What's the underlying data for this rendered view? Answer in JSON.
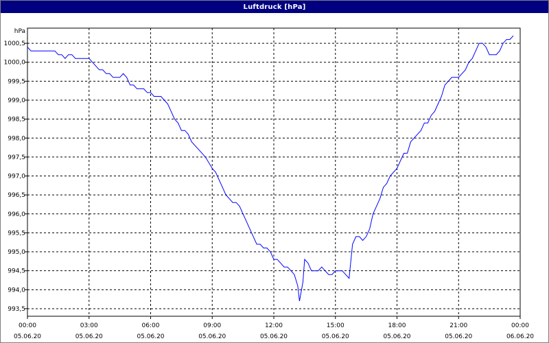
{
  "window": {
    "title": "Luftdruck [hPa]"
  },
  "colors": {
    "titlebar": "#000080",
    "line": "#0000ff",
    "grid": "#000000",
    "background": "#ffffff"
  },
  "chart_data": {
    "type": "line",
    "title": "Luftdruck [hPa]",
    "ylabel": "hPa",
    "xlabel": "",
    "x_ticks": [
      {
        "time": "00:00",
        "date": "05.06.20"
      },
      {
        "time": "03:00",
        "date": "05.06.20"
      },
      {
        "time": "06:00",
        "date": "05.06.20"
      },
      {
        "time": "09:00",
        "date": "05.06.20"
      },
      {
        "time": "12:00",
        "date": "05.06.20"
      },
      {
        "time": "15:00",
        "date": "05.06.20"
      },
      {
        "time": "18:00",
        "date": "05.06.20"
      },
      {
        "time": "21:00",
        "date": "05.06.20"
      },
      {
        "time": "00:00",
        "date": "06.06.20"
      }
    ],
    "y_ticks": [
      "993,5",
      "994,0",
      "994,5",
      "995,0",
      "995,5",
      "996,0",
      "996,5",
      "997,0",
      "997,5",
      "998,0",
      "998,5",
      "999,0",
      "999,5",
      "1000,0",
      "1000,5"
    ],
    "xlim": [
      "05.06.20 00:00",
      "06.06.20 00:00"
    ],
    "ylim": [
      993.3,
      1000.9
    ],
    "grid": true,
    "legend": false,
    "series": [
      {
        "points": [
          [
            "00:00",
            1000.4
          ],
          [
            "00:10",
            1000.3
          ],
          [
            "00:30",
            1000.3
          ],
          [
            "01:00",
            1000.3
          ],
          [
            "01:20",
            1000.3
          ],
          [
            "01:30",
            1000.2
          ],
          [
            "01:40",
            1000.2
          ],
          [
            "01:50",
            1000.1
          ],
          [
            "02:00",
            1000.2
          ],
          [
            "02:10",
            1000.2
          ],
          [
            "02:20",
            1000.1
          ],
          [
            "02:40",
            1000.1
          ],
          [
            "03:00",
            1000.1
          ],
          [
            "03:10",
            1000.0
          ],
          [
            "03:20",
            999.9
          ],
          [
            "03:30",
            999.8
          ],
          [
            "03:40",
            999.8
          ],
          [
            "03:50",
            999.7
          ],
          [
            "04:00",
            999.7
          ],
          [
            "04:10",
            999.6
          ],
          [
            "04:30",
            999.6
          ],
          [
            "04:40",
            999.7
          ],
          [
            "04:50",
            999.6
          ],
          [
            "05:00",
            999.4
          ],
          [
            "05:10",
            999.4
          ],
          [
            "05:20",
            999.3
          ],
          [
            "05:40",
            999.3
          ],
          [
            "05:50",
            999.2
          ],
          [
            "06:00",
            999.2
          ],
          [
            "06:10",
            999.1
          ],
          [
            "06:30",
            999.1
          ],
          [
            "06:40",
            999.0
          ],
          [
            "06:50",
            998.9
          ],
          [
            "07:00",
            998.7
          ],
          [
            "07:10",
            998.5
          ],
          [
            "07:20",
            998.4
          ],
          [
            "07:30",
            998.2
          ],
          [
            "07:40",
            998.2
          ],
          [
            "07:50",
            998.1
          ],
          [
            "08:00",
            997.9
          ],
          [
            "08:20",
            997.7
          ],
          [
            "08:40",
            997.5
          ],
          [
            "09:00",
            997.2
          ],
          [
            "09:10",
            997.1
          ],
          [
            "09:20",
            996.9
          ],
          [
            "09:30",
            996.7
          ],
          [
            "09:40",
            996.5
          ],
          [
            "09:50",
            996.4
          ],
          [
            "10:00",
            996.3
          ],
          [
            "10:10",
            996.3
          ],
          [
            "10:20",
            996.2
          ],
          [
            "10:30",
            996.0
          ],
          [
            "10:40",
            995.8
          ],
          [
            "10:50",
            995.6
          ],
          [
            "11:00",
            995.4
          ],
          [
            "11:10",
            995.2
          ],
          [
            "11:20",
            995.2
          ],
          [
            "11:30",
            995.1
          ],
          [
            "11:40",
            995.1
          ],
          [
            "11:50",
            995.0
          ],
          [
            "12:00",
            994.8
          ],
          [
            "12:10",
            994.8
          ],
          [
            "12:20",
            994.7
          ],
          [
            "12:30",
            994.6
          ],
          [
            "12:40",
            994.6
          ],
          [
            "12:50",
            994.5
          ],
          [
            "13:00",
            994.4
          ],
          [
            "13:10",
            994.1
          ],
          [
            "13:15",
            993.7
          ],
          [
            "13:25",
            994.2
          ],
          [
            "13:30",
            994.8
          ],
          [
            "13:40",
            994.7
          ],
          [
            "13:50",
            994.5
          ],
          [
            "14:00",
            994.5
          ],
          [
            "14:10",
            994.5
          ],
          [
            "14:20",
            994.6
          ],
          [
            "14:30",
            994.5
          ],
          [
            "14:40",
            994.4
          ],
          [
            "14:50",
            994.4
          ],
          [
            "15:00",
            994.5
          ],
          [
            "15:20",
            994.5
          ],
          [
            "15:30",
            994.4
          ],
          [
            "15:40",
            994.3
          ],
          [
            "15:50",
            995.2
          ],
          [
            "16:00",
            995.4
          ],
          [
            "16:10",
            995.4
          ],
          [
            "16:20",
            995.3
          ],
          [
            "16:30",
            995.4
          ],
          [
            "16:40",
            995.6
          ],
          [
            "16:50",
            996.0
          ],
          [
            "17:00",
            996.2
          ],
          [
            "17:10",
            996.4
          ],
          [
            "17:20",
            996.7
          ],
          [
            "17:30",
            996.8
          ],
          [
            "17:40",
            997.0
          ],
          [
            "18:00",
            997.2
          ],
          [
            "18:10",
            997.4
          ],
          [
            "18:20",
            997.6
          ],
          [
            "18:30",
            997.6
          ],
          [
            "18:40",
            997.9
          ],
          [
            "18:50",
            998.0
          ],
          [
            "19:00",
            998.1
          ],
          [
            "19:10",
            998.2
          ],
          [
            "19:20",
            998.4
          ],
          [
            "19:30",
            998.4
          ],
          [
            "19:40",
            998.6
          ],
          [
            "19:50",
            998.7
          ],
          [
            "20:00",
            998.9
          ],
          [
            "20:10",
            999.1
          ],
          [
            "20:20",
            999.4
          ],
          [
            "20:30",
            999.5
          ],
          [
            "20:40",
            999.6
          ],
          [
            "20:50",
            999.6
          ],
          [
            "21:00",
            999.6
          ],
          [
            "21:10",
            999.7
          ],
          [
            "21:20",
            999.8
          ],
          [
            "21:30",
            1000.0
          ],
          [
            "21:40",
            1000.1
          ],
          [
            "21:50",
            1000.3
          ],
          [
            "22:00",
            1000.5
          ],
          [
            "22:10",
            1000.5
          ],
          [
            "22:20",
            1000.4
          ],
          [
            "22:30",
            1000.2
          ],
          [
            "22:40",
            1000.2
          ],
          [
            "22:50",
            1000.2
          ],
          [
            "23:00",
            1000.3
          ],
          [
            "23:10",
            1000.5
          ],
          [
            "23:20",
            1000.6
          ],
          [
            "23:30",
            1000.6
          ],
          [
            "23:40",
            1000.7
          ]
        ]
      }
    ]
  }
}
